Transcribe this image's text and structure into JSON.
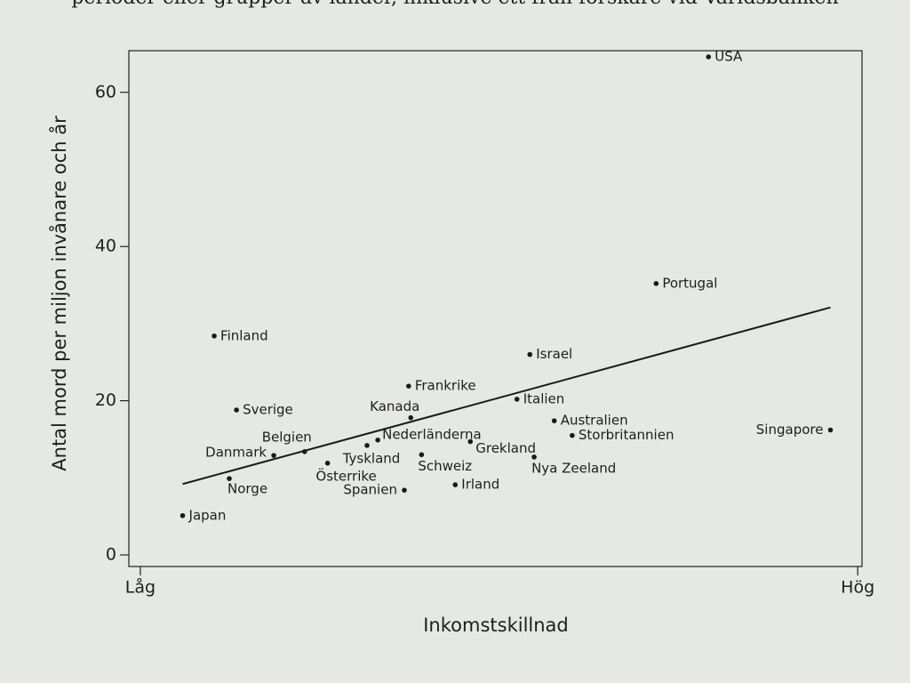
{
  "page_text": "perioder eller grupper av länder, inklusive ett från forskare vid Världsbanken",
  "chart_data": {
    "type": "scatter",
    "x_label": "Inkomstskillnad",
    "y_label": "Antal mord per miljon invånare och år",
    "xlim": [
      -1.6,
      100.6
    ],
    "ylim": [
      -1.5,
      65.4
    ],
    "xticks": [
      {
        "value": 0,
        "label": "Låg"
      },
      {
        "value": 100,
        "label": "Hög"
      }
    ],
    "yticks": [
      0,
      20,
      40,
      60
    ],
    "color": "#1a1a1a",
    "points": [
      {
        "label": "USA",
        "x": 79.2,
        "y": 64.6
      },
      {
        "label": "Portugal",
        "x": 71.9,
        "y": 35.2
      },
      {
        "label": "Finland",
        "x": 10.3,
        "y": 28.4
      },
      {
        "label": "Israel",
        "x": 54.3,
        "y": 26.0
      },
      {
        "label": "Frankrike",
        "x": 37.4,
        "y": 21.9
      },
      {
        "label": "Italien",
        "x": 52.5,
        "y": 20.2
      },
      {
        "label": "Sverige",
        "x": 13.4,
        "y": 18.8
      },
      {
        "label": "Kanada",
        "x": 37.7,
        "y": 17.8
      },
      {
        "label": "Australien",
        "x": 57.7,
        "y": 17.4
      },
      {
        "label": "Storbritannien",
        "x": 60.2,
        "y": 15.5
      },
      {
        "label": "Singapore",
        "x": 96.2,
        "y": 16.2
      },
      {
        "label": "Nederländerna",
        "x": 33.1,
        "y": 14.9
      },
      {
        "label": "Grekland",
        "x": 46.0,
        "y": 14.7
      },
      {
        "label": "Belgien",
        "x": 22.9,
        "y": 13.4
      },
      {
        "label": "Tyskland",
        "x": 31.6,
        "y": 14.2
      },
      {
        "label": "Danmark",
        "x": 18.6,
        "y": 12.9
      },
      {
        "label": "Schweiz",
        "x": 39.2,
        "y": 13.0
      },
      {
        "label": "Nya Zeeland",
        "x": 54.9,
        "y": 12.7
      },
      {
        "label": "Österrike",
        "x": 26.1,
        "y": 11.9
      },
      {
        "label": "Norge",
        "x": 12.4,
        "y": 9.9
      },
      {
        "label": "Irland",
        "x": 43.9,
        "y": 9.1
      },
      {
        "label": "Spanien",
        "x": 36.8,
        "y": 8.4
      },
      {
        "label": "Japan",
        "x": 5.9,
        "y": 5.1
      }
    ],
    "trend": {
      "x": [
        5.9,
        96.2
      ],
      "y": [
        9.2,
        32.1
      ]
    }
  }
}
